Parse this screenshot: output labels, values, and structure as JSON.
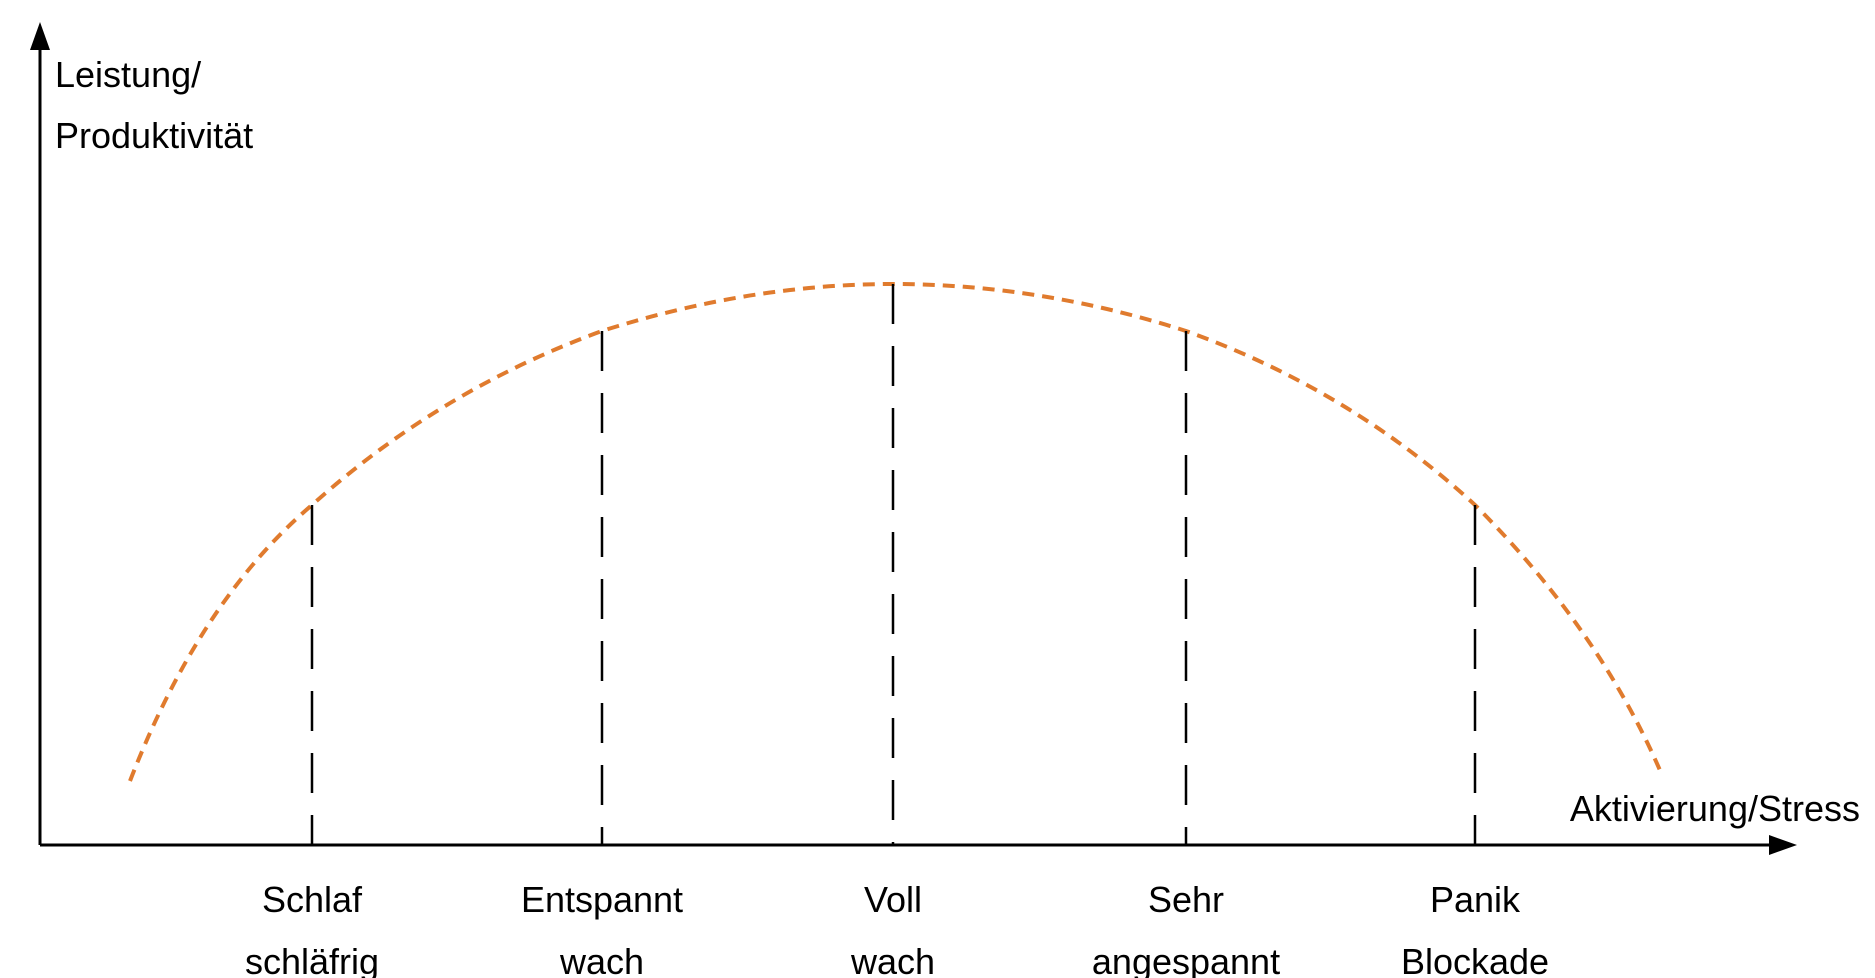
{
  "y_axis_label": [
    "Leistung/",
    "Produktivität"
  ],
  "x_axis_label": "Aktivierung/Stress",
  "markers": [
    {
      "lines": [
        "Schlaf",
        "schläfrig"
      ]
    },
    {
      "lines": [
        "Entspannt",
        "wach"
      ]
    },
    {
      "lines": [
        "Voll",
        "wach"
      ]
    },
    {
      "lines": [
        "Sehr",
        "angespannt"
      ]
    },
    {
      "lines": [
        "Panik",
        "Blockade"
      ]
    }
  ]
}
